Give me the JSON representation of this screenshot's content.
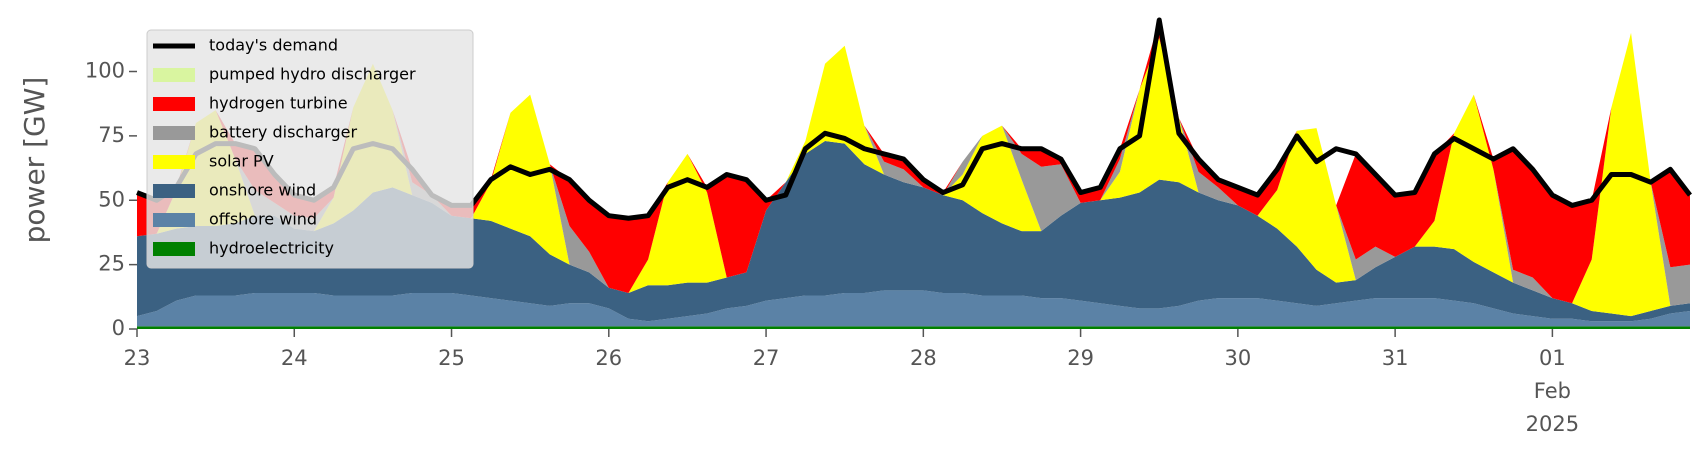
{
  "chart_data": {
    "type": "area",
    "ylabel": "power [GW]",
    "x": [
      0,
      0.125,
      0.25,
      0.375,
      0.5,
      0.625,
      0.75,
      0.875,
      1,
      1.125,
      1.25,
      1.375,
      1.5,
      1.625,
      1.75,
      1.875,
      2,
      2.125,
      2.25,
      2.375,
      2.5,
      2.625,
      2.75,
      2.875,
      3,
      3.125,
      3.25,
      3.375,
      3.5,
      3.625,
      3.75,
      3.875,
      4,
      4.125,
      4.25,
      4.375,
      4.5,
      4.625,
      4.75,
      4.875,
      5,
      5.125,
      5.25,
      5.375,
      5.5,
      5.625,
      5.75,
      5.875,
      6,
      6.125,
      6.25,
      6.375,
      6.5,
      6.625,
      6.75,
      6.875,
      7,
      7.125,
      7.25,
      7.375,
      7.5,
      7.625,
      7.75,
      7.875,
      8,
      8.125,
      8.25,
      8.375,
      8.5,
      8.625,
      8.75,
      8.875,
      9,
      9.125,
      9.25,
      9.375,
      9.5,
      9.625,
      9.75,
      9.875
    ],
    "xlim": [
      0,
      9.875
    ],
    "xticks": [
      {
        "value": 0,
        "label": "23"
      },
      {
        "value": 1,
        "label": "24"
      },
      {
        "value": 2,
        "label": "25"
      },
      {
        "value": 3,
        "label": "26"
      },
      {
        "value": 4,
        "label": "27"
      },
      {
        "value": 5,
        "label": "28"
      },
      {
        "value": 6,
        "label": "29"
      },
      {
        "value": 7,
        "label": "30"
      },
      {
        "value": 8,
        "label": "31"
      },
      {
        "value": 9,
        "label": "01\nFeb\n2025"
      }
    ],
    "ylim": [
      0,
      120
    ],
    "yticks": [
      0,
      25,
      50,
      75,
      100
    ],
    "legend": "upper left",
    "series": [
      {
        "name": "today's demand",
        "type": "line",
        "color": "#000000",
        "values": [
          53,
          50,
          55,
          68,
          72,
          72,
          70,
          60,
          52,
          50,
          55,
          70,
          72,
          70,
          62,
          52,
          48,
          48,
          58,
          63,
          60,
          62,
          58,
          50,
          44,
          43,
          44,
          55,
          58,
          55,
          60,
          58,
          50,
          52,
          70,
          76,
          74,
          70,
          68,
          66,
          58,
          53,
          56,
          70,
          72,
          70,
          70,
          66,
          53,
          55,
          70,
          75,
          120,
          76,
          66,
          58,
          55,
          52,
          62,
          75,
          65,
          70,
          68,
          60,
          52,
          53,
          68,
          74,
          70,
          66,
          70,
          62,
          52,
          48,
          50,
          60,
          60,
          57,
          62,
          52
        ]
      },
      {
        "name": "pumped hydro discharger",
        "color": "#d9f5a0",
        "values": [
          0,
          0,
          0,
          0,
          0,
          0,
          0,
          0,
          0,
          0,
          0,
          0,
          0,
          0,
          0,
          0,
          0,
          0,
          0,
          0,
          0,
          0,
          0,
          0,
          0,
          0,
          0,
          0,
          0,
          0,
          0,
          0,
          0,
          0,
          0,
          0,
          0,
          0,
          0,
          0,
          0,
          0,
          0,
          0,
          0,
          0,
          0,
          0,
          0,
          0,
          0,
          0,
          0,
          0,
          0,
          0,
          0,
          0,
          0,
          0,
          0,
          0,
          0,
          0,
          0,
          0,
          0,
          0,
          0,
          0,
          0,
          0,
          0,
          0,
          0,
          0,
          0,
          0,
          0,
          0
        ]
      },
      {
        "name": "hydrogen turbine",
        "color": "#ff0000",
        "values": [
          17,
          13,
          1,
          0,
          0,
          6,
          16,
          11,
          8,
          7,
          4,
          0,
          0,
          0,
          5,
          0,
          4,
          5,
          1,
          0,
          0,
          0,
          18,
          20,
          28,
          29,
          17,
          0,
          0,
          2,
          40,
          36,
          4,
          0,
          0,
          0,
          0,
          0,
          3,
          4,
          3,
          1,
          0,
          0,
          0,
          2,
          7,
          2,
          4,
          5,
          4,
          0,
          7,
          0,
          5,
          3,
          7,
          8,
          8,
          0,
          0,
          0,
          41,
          28,
          24,
          21,
          26,
          0,
          0,
          4,
          47,
          42,
          40,
          38,
          23,
          0,
          0,
          0,
          38,
          27
        ]
      },
      {
        "name": "battery discharger",
        "color": "#999999",
        "values": [
          0,
          0,
          0,
          0,
          0,
          0,
          10,
          5,
          5,
          5,
          0,
          0,
          0,
          0,
          5,
          3,
          0,
          0,
          0,
          0,
          0,
          0,
          15,
          8,
          0,
          0,
          0,
          0,
          0,
          0,
          0,
          0,
          0,
          0,
          0,
          0,
          0,
          0,
          5,
          5,
          0,
          0,
          5,
          0,
          0,
          10,
          25,
          20,
          0,
          0,
          5,
          0,
          0,
          0,
          8,
          5,
          0,
          0,
          0,
          0,
          0,
          0,
          8,
          8,
          0,
          0,
          0,
          0,
          0,
          0,
          5,
          5,
          0,
          0,
          0,
          0,
          0,
          0,
          15,
          15
        ]
      },
      {
        "name": "solar PV",
        "color": "#ffff00",
        "values": [
          0,
          0,
          15,
          40,
          45,
          25,
          0,
          0,
          0,
          0,
          10,
          40,
          50,
          30,
          0,
          0,
          0,
          0,
          15,
          45,
          55,
          35,
          0,
          0,
          0,
          0,
          10,
          40,
          50,
          35,
          0,
          0,
          0,
          0,
          5,
          30,
          38,
          15,
          0,
          0,
          0,
          0,
          10,
          30,
          38,
          20,
          0,
          0,
          0,
          0,
          10,
          40,
          55,
          25,
          0,
          0,
          0,
          0,
          15,
          45,
          55,
          30,
          0,
          0,
          0,
          0,
          10,
          45,
          65,
          40,
          0,
          0,
          0,
          0,
          20,
          80,
          110,
          50,
          0,
          0
        ]
      },
      {
        "name": "onshore wind",
        "color": "#3b6182",
        "values": [
          31,
          30,
          28,
          27,
          27,
          28,
          30,
          30,
          25,
          24,
          28,
          33,
          40,
          42,
          38,
          35,
          30,
          30,
          30,
          28,
          26,
          20,
          15,
          12,
          8,
          10,
          14,
          13,
          13,
          12,
          12,
          13,
          35,
          45,
          55,
          60,
          58,
          50,
          45,
          42,
          40,
          38,
          36,
          32,
          28,
          25,
          26,
          32,
          38,
          40,
          42,
          45,
          50,
          48,
          42,
          38,
          36,
          32,
          28,
          22,
          14,
          8,
          8,
          12,
          16,
          20,
          20,
          20,
          16,
          14,
          12,
          10,
          8,
          6,
          4,
          3,
          2,
          3,
          3,
          3
        ]
      },
      {
        "name": "offshore wind",
        "color": "#5b82a6",
        "values": [
          4,
          6,
          10,
          12,
          12,
          12,
          13,
          13,
          13,
          13,
          12,
          12,
          12,
          12,
          13,
          13,
          13,
          12,
          11,
          10,
          9,
          8,
          9,
          9,
          7,
          3,
          2,
          3,
          4,
          5,
          7,
          8,
          10,
          11,
          12,
          12,
          13,
          13,
          14,
          14,
          14,
          13,
          13,
          12,
          12,
          12,
          11,
          11,
          10,
          9,
          8,
          7,
          7,
          8,
          10,
          11,
          11,
          11,
          10,
          9,
          8,
          9,
          10,
          11,
          11,
          11,
          11,
          10,
          9,
          7,
          5,
          4,
          3,
          3,
          2,
          2,
          2,
          3,
          5,
          6
        ]
      },
      {
        "name": "hydroelectricity",
        "color": "#008000",
        "values": [
          1,
          1,
          1,
          1,
          1,
          1,
          1,
          1,
          1,
          1,
          1,
          1,
          1,
          1,
          1,
          1,
          1,
          1,
          1,
          1,
          1,
          1,
          1,
          1,
          1,
          1,
          1,
          1,
          1,
          1,
          1,
          1,
          1,
          1,
          1,
          1,
          1,
          1,
          1,
          1,
          1,
          1,
          1,
          1,
          1,
          1,
          1,
          1,
          1,
          1,
          1,
          1,
          1,
          1,
          1,
          1,
          1,
          1,
          1,
          1,
          1,
          1,
          1,
          1,
          1,
          1,
          1,
          1,
          1,
          1,
          1,
          1,
          1,
          1,
          1,
          1,
          1,
          1,
          1,
          1
        ]
      }
    ]
  }
}
